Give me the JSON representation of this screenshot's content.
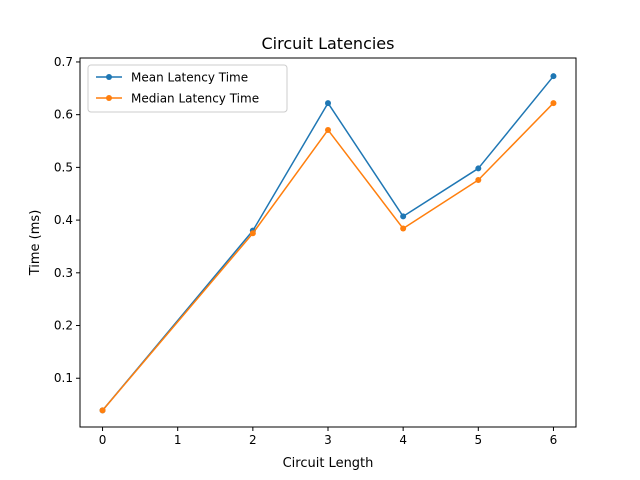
{
  "chart_data": {
    "type": "line",
    "title": "Circuit Latencies",
    "xlabel": "Circuit Length",
    "ylabel": "Time (ms)",
    "xlim": [
      -0.3,
      6.3
    ],
    "ylim": [
      0.0075,
      0.7075
    ],
    "xticks": [
      0,
      1,
      2,
      3,
      4,
      5,
      6
    ],
    "xtick_labels": [
      "0",
      "1",
      "2",
      "3",
      "4",
      "5",
      "6"
    ],
    "yticks": [
      0.1,
      0.2,
      0.3,
      0.4,
      0.5,
      0.6,
      0.7
    ],
    "ytick_labels": [
      "0.1",
      "0.2",
      "0.3",
      "0.4",
      "0.5",
      "0.6",
      "0.7"
    ],
    "grid": false,
    "legend_position": "top-left",
    "series": [
      {
        "name": "Mean Latency Time",
        "color": "#1f77b4",
        "marker": "circle",
        "x": [
          0,
          2,
          3,
          4,
          5,
          6
        ],
        "y": [
          0.039,
          0.38,
          0.622,
          0.407,
          0.498,
          0.673
        ]
      },
      {
        "name": "Median Latency Time",
        "color": "#ff7f0e",
        "marker": "circle",
        "x": [
          0,
          2,
          3,
          4,
          5,
          6
        ],
        "y": [
          0.039,
          0.375,
          0.571,
          0.384,
          0.476,
          0.622
        ]
      }
    ]
  }
}
